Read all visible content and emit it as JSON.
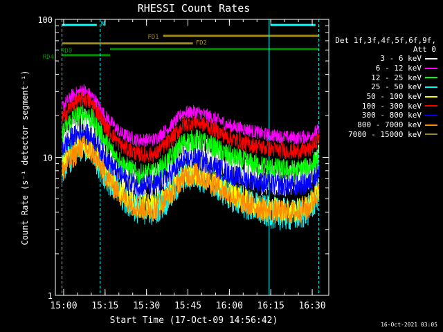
{
  "chart_data": {
    "type": "line",
    "title": "RHESSI Count Rates",
    "xlabel": "Start Time (17-Oct-09 14:56:42)",
    "ylabel": "Count Rate (s⁻¹ detector segment⁻¹)",
    "yscale": "log",
    "ylim": [
      1,
      100
    ],
    "xlim": [
      14.95,
      16.6
    ],
    "y_ticks": [
      "1",
      "10",
      "100"
    ],
    "x_ticks": [
      {
        "h": 15.0,
        "label": "15:00"
      },
      {
        "h": 15.25,
        "label": "15:15"
      },
      {
        "h": 15.5,
        "label": "15:30"
      },
      {
        "h": 15.75,
        "label": "15:45"
      },
      {
        "h": 16.0,
        "label": "16:00"
      },
      {
        "h": 16.25,
        "label": "16:15"
      },
      {
        "h": 16.5,
        "label": "16:30"
      }
    ],
    "series_x": [
      14.99,
      15.05,
      15.12,
      15.18,
      15.25,
      15.35,
      15.45,
      15.55,
      15.65,
      15.72,
      15.8,
      15.9,
      16.0,
      16.1,
      16.2,
      16.3,
      16.4,
      16.48,
      16.54
    ],
    "series": [
      {
        "name": "3 - 6 keV",
        "color": "#ffffff",
        "noise": 0.12,
        "values": [
          12,
          15,
          18,
          15,
          10,
          7.2,
          6.3,
          6.5,
          8.0,
          10.2,
          11.2,
          10.0,
          8.3,
          7.6,
          7.0,
          6.9,
          7.0,
          7.6,
          9.5
        ]
      },
      {
        "name": "6 - 12 keV",
        "color": "#ff00ff",
        "noise": 0.05,
        "values": [
          23,
          28,
          31,
          27,
          20,
          14.8,
          13.3,
          13.5,
          17,
          21,
          21.5,
          19.5,
          17,
          16,
          14.8,
          14.2,
          13.8,
          14.2,
          15.8
        ]
      },
      {
        "name": "12 - 25 keV",
        "color": "#00ff00",
        "noise": 0.08,
        "values": [
          15,
          19,
          21,
          18.5,
          13,
          9.0,
          7.5,
          7.6,
          10,
          12.8,
          13.4,
          12.0,
          10.2,
          9.3,
          8.6,
          8.2,
          8.0,
          8.4,
          10
        ]
      },
      {
        "name": "25 - 50 keV",
        "color": "#00ffff",
        "noise": 0.12,
        "values": [
          8.5,
          10.5,
          12.3,
          10.8,
          7.6,
          5.2,
          4.3,
          4.2,
          5.4,
          7.2,
          7.6,
          6.6,
          5.4,
          4.6,
          4.1,
          3.9,
          3.8,
          4.2,
          5.6
        ]
      },
      {
        "name": "50 - 100 keV",
        "color": "#ffff00",
        "noise": 0.09,
        "values": [
          8.8,
          11,
          12.6,
          11.2,
          8.1,
          5.6,
          4.5,
          4.4,
          5.7,
          7.4,
          7.8,
          6.8,
          5.6,
          4.9,
          4.4,
          4.2,
          4.1,
          4.5,
          5.9
        ]
      },
      {
        "name": "100 - 300 keV",
        "color": "#ff0000",
        "noise": 0.06,
        "values": [
          19,
          24,
          27,
          24,
          17,
          12,
          10.5,
          10.5,
          13.5,
          17.2,
          18.2,
          16.2,
          13.8,
          12.6,
          11.8,
          11.3,
          11.0,
          11.3,
          13.8
        ]
      },
      {
        "name": "300 - 800 keV",
        "color": "#0000ff",
        "noise": 0.08,
        "values": [
          11.5,
          14,
          15.2,
          13.5,
          10,
          7.2,
          6.3,
          6.3,
          7.6,
          9.4,
          9.8,
          8.7,
          7.6,
          6.9,
          6.5,
          6.3,
          6.2,
          6.4,
          8.0
        ]
      },
      {
        "name": "800 - 7000 keV",
        "color": "#ff8c00",
        "noise": 0.09,
        "values": [
          7.8,
          10,
          12,
          10.5,
          7.5,
          5.2,
          4.3,
          4.2,
          5.5,
          7.2,
          7.5,
          6.5,
          5.4,
          4.6,
          4.2,
          4.0,
          4.0,
          4.3,
          5.7
        ]
      },
      {
        "name": "7000 - 15000 keV",
        "color": "#a08a18",
        "noise": 0.0,
        "values": []
      }
    ],
    "annotations": {
      "vertical_markers": [
        14.99,
        15.22,
        16.24,
        16.54
      ],
      "bars": [
        {
          "label": "N",
          "color": "#00ffff",
          "segments": [
            [
              14.99,
              15.2
            ],
            [
              16.25,
              16.52
            ]
          ],
          "y_val": 91
        },
        {
          "label": "FD1",
          "color": "#a08a18",
          "segments": [
            [
              15.6,
              16.54
            ]
          ],
          "y_val": 76
        },
        {
          "label": "FD2",
          "color": "#a08a18",
          "segments": [
            [
              14.99,
              15.78
            ]
          ],
          "y_val": 67
        },
        {
          "label": "RD0",
          "color": "#008c00",
          "segments": [
            [
              15.28,
              16.54
            ]
          ],
          "y_val": 61
        },
        {
          "label": "RD4",
          "color": "#008c00",
          "segments": [
            [
              14.99,
              15.28
            ]
          ],
          "y_val": 55
        }
      ]
    }
  },
  "legend": {
    "header_line1": "Det 1f,3f,4f,5f,6f,9f,",
    "header_line2": "Att 0"
  },
  "stamp": "16-Oct-2021 03:05"
}
